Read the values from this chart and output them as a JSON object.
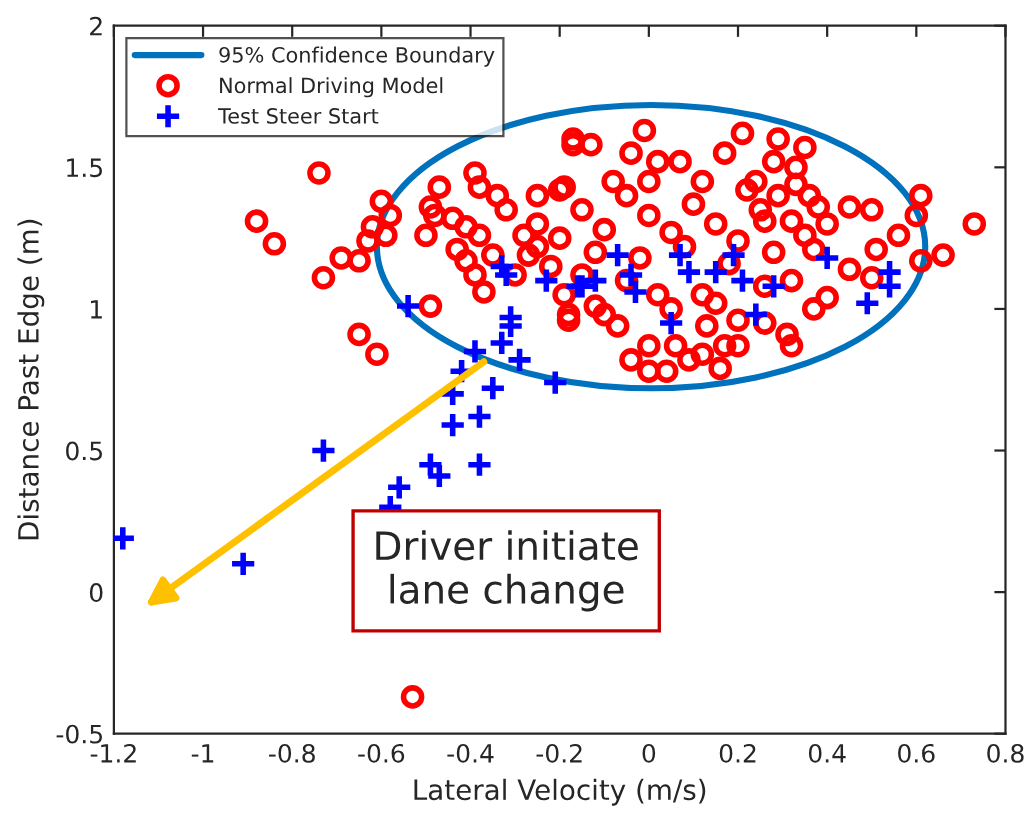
{
  "chart_data": {
    "type": "scatter",
    "xlabel": "Lateral Velocity (m/s)",
    "ylabel": "Distance Past Edge (m)",
    "xlim": [
      -1.2,
      0.8
    ],
    "xticks": [
      -1.2,
      -1,
      -0.8,
      -0.6,
      -0.4,
      -0.2,
      0,
      0.2,
      0.4,
      0.6,
      0.8
    ],
    "ylim": [
      -0.5,
      2
    ],
    "yticks": [
      -0.5,
      0,
      0.5,
      1,
      1.5,
      2
    ],
    "grid": false,
    "legend": "top left",
    "annotations": [
      "Driver initiate\nlane change",
      "95% Confidence Boundary"
    ],
    "series": [
      {
        "name": "Normal Driving Model",
        "marker": "circle",
        "color": "#ff0000",
        "x": [
          -0.53,
          -0.74,
          -0.88,
          -0.84,
          -0.73,
          -0.69,
          -0.65,
          -0.65,
          -0.61,
          -0.49,
          -0.6,
          -0.58,
          -0.62,
          -0.63,
          -0.59,
          -0.5,
          -0.49,
          -0.47,
          -0.48,
          -0.44,
          -0.39,
          -0.38,
          -0.34,
          -0.32,
          -0.41,
          -0.38,
          -0.43,
          -0.41,
          -0.39,
          -0.37,
          -0.35,
          -0.3,
          -0.28,
          -0.25,
          -0.19,
          -0.17,
          -0.27,
          -0.19,
          -0.18,
          -0.01,
          -0.17,
          -0.13,
          -0.04,
          0.02,
          0.07,
          0.17,
          0.21,
          0.29,
          0.35,
          0.28,
          0.33,
          0.33,
          0.24,
          0.29,
          0.36,
          0.38,
          0.45,
          0.5,
          0.61,
          0.6,
          0.73,
          0.66,
          0.61,
          0.56,
          0.51,
          0.45,
          0.5,
          0.4,
          0.35,
          0.37,
          0.32,
          0.26,
          0.4,
          0.37,
          0.32,
          0.26,
          0.26,
          0.31,
          0.32,
          0.2,
          0.2,
          0.17,
          0.16,
          0.12,
          0.09,
          0.04,
          0.0,
          -0.04,
          0.0,
          0.06,
          0.13,
          -0.07,
          -0.12,
          -0.18,
          -0.25,
          -0.2,
          -0.15,
          -0.1,
          -0.05,
          0,
          0.05,
          0.1,
          0.15,
          0.2,
          0.25,
          -0.22,
          -0.12,
          -0.02,
          0.08,
          0.18,
          0.28,
          -0.08,
          0.12,
          0.02,
          0.12,
          -0.1,
          0.05,
          -0.25,
          -0.15,
          0.22,
          -0.2,
          0.0,
          0.15,
          -0.05
        ],
        "values": [
          -0.37,
          1.48,
          1.31,
          1.23,
          1.11,
          1.18,
          1.17,
          0.91,
          0.84,
          1.01,
          1.38,
          1.33,
          1.29,
          1.24,
          1.26,
          1.26,
          1.36,
          1.43,
          1.33,
          1.32,
          1.48,
          1.43,
          1.4,
          1.35,
          1.29,
          1.26,
          1.21,
          1.17,
          1.12,
          1.06,
          1.19,
          1.12,
          1.26,
          1.4,
          1.43,
          1.58,
          1.19,
          1.05,
          0.98,
          1.63,
          1.6,
          1.58,
          1.55,
          1.52,
          1.52,
          1.55,
          1.62,
          1.6,
          1.57,
          1.52,
          1.5,
          1.44,
          1.45,
          1.4,
          1.4,
          1.36,
          1.36,
          1.35,
          1.4,
          1.33,
          1.3,
          1.19,
          1.17,
          1.26,
          1.21,
          1.14,
          1.11,
          1.3,
          1.26,
          1.21,
          1.31,
          1.31,
          1.04,
          1.0,
          1.1,
          1.08,
          0.95,
          0.91,
          0.87,
          0.96,
          0.87,
          0.87,
          0.79,
          0.84,
          0.82,
          0.78,
          0.78,
          0.82,
          0.87,
          0.87,
          0.94,
          0.94,
          1.01,
          0.96,
          1.3,
          1.25,
          1.35,
          1.28,
          1.4,
          1.33,
          1.27,
          1.37,
          1.3,
          1.24,
          1.35,
          1.15,
          1.2,
          1.18,
          1.22,
          1.16,
          1.2,
          1.45,
          1.45,
          1.05,
          1.05,
          0.98,
          1.0,
          1.22,
          1.12,
          1.42,
          1.42,
          1.45,
          1.02,
          1.1
        ]
      },
      {
        "name": "Test Steer Start",
        "marker": "cross",
        "color": "#0000ff",
        "x": [
          -1.18,
          -0.91,
          -0.73,
          -0.58,
          -0.56,
          -0.49,
          -0.47,
          -0.44,
          -0.44,
          -0.38,
          -0.38,
          -0.42,
          -0.39,
          -0.35,
          -0.29,
          -0.21,
          -0.54,
          -0.33,
          -0.31,
          -0.31,
          -0.33,
          -0.32,
          -0.23,
          -0.16,
          -0.07,
          -0.15,
          -0.12,
          -0.04,
          -0.03,
          0.07,
          0.09,
          0.15,
          0.19,
          0.21,
          0.05,
          0.24,
          0.28,
          0.4,
          0.49,
          0.54,
          0.54
        ],
        "values": [
          0.19,
          0.1,
          0.5,
          0.3,
          0.37,
          0.45,
          0.41,
          0.59,
          0.7,
          0.62,
          0.45,
          0.78,
          0.85,
          0.72,
          0.82,
          0.74,
          1.01,
          0.88,
          0.97,
          0.94,
          1.15,
          1.12,
          1.1,
          1.08,
          1.19,
          1.08,
          1.1,
          1.12,
          1.06,
          1.19,
          1.13,
          1.13,
          1.19,
          1.1,
          0.95,
          0.98,
          1.08,
          1.18,
          1.02,
          1.13,
          1.08
        ]
      }
    ]
  }
}
